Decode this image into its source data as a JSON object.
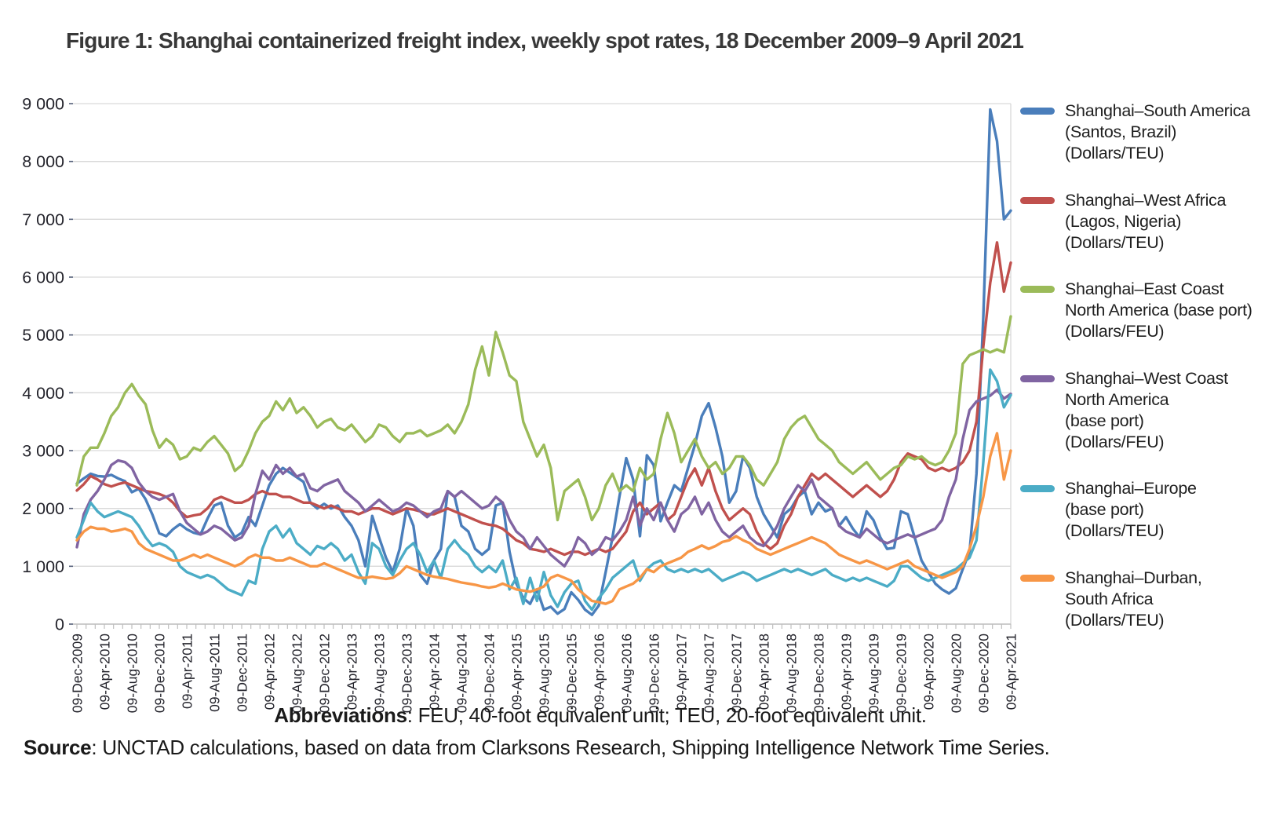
{
  "title": "Figure 1: Shanghai containerized freight index, weekly spot rates, 18 December 2009–9 April 2021",
  "footer": {
    "abbreviations_label": "Abbreviations",
    "abbreviations_text": ": FEU, 40-foot equivalent unit; TEU, 20-foot equivalent unit.",
    "source_label": "Source",
    "source_text": ": UNCTAD calculations, based on data from Clarksons Research, Shipping Intelligence Network Time Series."
  },
  "chart_data": {
    "type": "line",
    "title": "Shanghai containerized freight index, weekly spot rates",
    "sampling": "monthly estimates read from chart, Dec-2009 through Apr-2021 (137 points per series)",
    "grid": "horizontal",
    "legend_position": "right",
    "x_axis": {
      "start": "09-Dec-2009",
      "end": "09-Apr-2021",
      "months_per_tick": 4,
      "tick_labels": [
        "09-Dec-2009",
        "09-Apr-2010",
        "09-Aug-2010",
        "09-Dec-2010",
        "09-Apr-2011",
        "09-Aug-2011",
        "09-Dec-2011",
        "09-Apr-2012",
        "09-Aug-2012",
        "09-Dec-2012",
        "09-Apr-2013",
        "09-Aug-2013",
        "09-Dec-2013",
        "09-Apr-2014",
        "09-Aug-2014",
        "09-Dec-2014",
        "09-Apr-2015",
        "09-Aug-2015",
        "09-Dec-2015",
        "09-Apr-2016",
        "09-Aug-2016",
        "09-Dec-2016",
        "09-Apr-2017",
        "09-Aug-2017",
        "09-Dec-2017",
        "09-Apr-2018",
        "09-Aug-2018",
        "09-Dec-2018",
        "09-Apr-2019",
        "09-Aug-2019",
        "09-Dec-2019",
        "09-Apr-2020",
        "09-Aug-2020",
        "09-Dec-2020",
        "09-Apr-2021"
      ]
    },
    "y_axis": {
      "min": 0,
      "max": 9000,
      "step": 1000,
      "tick_labels": [
        "0",
        "1 000",
        "2 000",
        "3 000",
        "4 000",
        "5 000",
        "6 000",
        "7 000",
        "8 000",
        "9 000"
      ]
    },
    "series": [
      {
        "name": "Shanghai–South America (Santos, Brazil) (Dollars/TEU)",
        "legend_lines": [
          "Shanghai–South America",
          "(Santos, Brazil)",
          "(Dollars/TEU)"
        ],
        "color": "#4a7ebb",
        "values": [
          2430,
          2520,
          2600,
          2560,
          2550,
          2580,
          2520,
          2470,
          2280,
          2340,
          2160,
          1890,
          1570,
          1520,
          1640,
          1730,
          1640,
          1580,
          1550,
          1820,
          2050,
          2100,
          1700,
          1500,
          1580,
          1850,
          1700,
          2050,
          2400,
          2600,
          2700,
          2620,
          2540,
          2460,
          2100,
          2000,
          2080,
          2000,
          2050,
          1850,
          1700,
          1450,
          1000,
          1870,
          1500,
          1150,
          900,
          1300,
          2000,
          1700,
          850,
          700,
          1100,
          1300,
          2300,
          2200,
          1700,
          1600,
          1300,
          1200,
          1300,
          2050,
          2100,
          1250,
          700,
          450,
          350,
          600,
          250,
          300,
          180,
          260,
          550,
          420,
          250,
          160,
          320,
          900,
          1500,
          2200,
          2870,
          2500,
          1520,
          2920,
          2750,
          1780,
          2100,
          2400,
          2300,
          2700,
          3100,
          3600,
          3820,
          3400,
          2900,
          2100,
          2300,
          2900,
          2700,
          2200,
          1900,
          1700,
          1500,
          1900,
          2000,
          2200,
          2300,
          1900,
          2100,
          1950,
          2000,
          1700,
          1850,
          1650,
          1500,
          1950,
          1800,
          1500,
          1300,
          1320,
          1950,
          1900,
          1500,
          1100,
          900,
          700,
          600,
          530,
          620,
          950,
          1250,
          2600,
          5300,
          8900,
          8350,
          7000,
          7150
        ]
      },
      {
        "name": "Shanghai–West Africa (Lagos, Nigeria) (Dollars/TEU)",
        "legend_lines": [
          "Shanghai–West Africa",
          "(Lagos, Nigeria)",
          "(Dollars/TEU)"
        ],
        "color": "#c0504d",
        "values": [
          2310,
          2420,
          2560,
          2500,
          2420,
          2380,
          2420,
          2450,
          2400,
          2350,
          2300,
          2280,
          2250,
          2200,
          2100,
          1950,
          1850,
          1880,
          1900,
          2000,
          2150,
          2200,
          2150,
          2100,
          2100,
          2150,
          2250,
          2300,
          2250,
          2250,
          2200,
          2200,
          2150,
          2100,
          2100,
          2050,
          2000,
          2050,
          2000,
          1950,
          1950,
          1900,
          1950,
          2000,
          2000,
          1950,
          1900,
          1950,
          2000,
          1980,
          1950,
          1900,
          1900,
          1950,
          2000,
          1950,
          1900,
          1850,
          1800,
          1750,
          1720,
          1700,
          1650,
          1550,
          1450,
          1400,
          1300,
          1280,
          1250,
          1300,
          1250,
          1200,
          1250,
          1250,
          1200,
          1250,
          1300,
          1250,
          1300,
          1450,
          1600,
          1950,
          2100,
          1900,
          2000,
          2100,
          1800,
          1900,
          2200,
          2500,
          2690,
          2400,
          2700,
          2300,
          2000,
          1800,
          1900,
          2000,
          1900,
          1600,
          1400,
          1300,
          1400,
          1700,
          1900,
          2200,
          2400,
          2600,
          2500,
          2600,
          2500,
          2400,
          2300,
          2200,
          2300,
          2400,
          2300,
          2200,
          2300,
          2500,
          2800,
          2950,
          2900,
          2850,
          2700,
          2650,
          2700,
          2650,
          2700,
          2800,
          3000,
          3500,
          4800,
          5900,
          6600,
          5750,
          6250
        ]
      },
      {
        "name": "Shanghai–East Coast North America (base port) (Dollars/FEU)",
        "legend_lines": [
          "Shanghai–East Coast",
          "North America (base port)",
          "(Dollars/FEU)"
        ],
        "color": "#9bbb59",
        "values": [
          2400,
          2900,
          3050,
          3050,
          3300,
          3600,
          3750,
          4000,
          4150,
          3950,
          3800,
          3350,
          3050,
          3200,
          3100,
          2850,
          2900,
          3050,
          3000,
          3150,
          3250,
          3100,
          2950,
          2650,
          2750,
          3000,
          3300,
          3500,
          3600,
          3850,
          3700,
          3900,
          3650,
          3750,
          3600,
          3400,
          3500,
          3550,
          3400,
          3350,
          3450,
          3300,
          3150,
          3250,
          3450,
          3400,
          3250,
          3150,
          3300,
          3300,
          3350,
          3250,
          3300,
          3350,
          3450,
          3300,
          3500,
          3800,
          4400,
          4800,
          4300,
          5050,
          4700,
          4300,
          4200,
          3500,
          3200,
          2900,
          3100,
          2700,
          1800,
          2300,
          2400,
          2500,
          2200,
          1800,
          2000,
          2400,
          2600,
          2300,
          2400,
          2300,
          2700,
          2500,
          2600,
          3200,
          3650,
          3300,
          2800,
          3000,
          3200,
          2900,
          2700,
          2800,
          2600,
          2700,
          2900,
          2900,
          2750,
          2500,
          2400,
          2600,
          2800,
          3200,
          3400,
          3530,
          3600,
          3400,
          3200,
          3100,
          3000,
          2800,
          2700,
          2600,
          2700,
          2800,
          2650,
          2500,
          2600,
          2700,
          2750,
          2900,
          2850,
          2900,
          2800,
          2750,
          2800,
          3000,
          3300,
          4500,
          4650,
          4700,
          4750,
          4700,
          4750,
          4700,
          5320
        ]
      },
      {
        "name": "Shanghai–West Coast North America (base port) (Dollars/FEU)",
        "legend_lines": [
          "Shanghai–West Coast",
          "North America",
          "(base port)",
          "(Dollars/FEU)"
        ],
        "color": "#8064a2",
        "values": [
          1330,
          1900,
          2150,
          2300,
          2500,
          2750,
          2830,
          2800,
          2700,
          2450,
          2300,
          2200,
          2150,
          2200,
          2250,
          1950,
          1750,
          1650,
          1550,
          1600,
          1700,
          1650,
          1550,
          1450,
          1500,
          1700,
          2250,
          2650,
          2500,
          2750,
          2600,
          2700,
          2550,
          2600,
          2350,
          2300,
          2400,
          2450,
          2500,
          2300,
          2200,
          2100,
          1950,
          2050,
          2150,
          2050,
          1950,
          2000,
          2100,
          2050,
          1950,
          1850,
          1950,
          2000,
          2300,
          2200,
          2300,
          2200,
          2100,
          2000,
          2050,
          2200,
          2100,
          1800,
          1600,
          1500,
          1300,
          1500,
          1350,
          1200,
          1100,
          1000,
          1200,
          1500,
          1400,
          1200,
          1300,
          1500,
          1450,
          1600,
          1800,
          2200,
          1700,
          2000,
          1800,
          2100,
          1800,
          1600,
          1900,
          2000,
          2200,
          1900,
          2100,
          1800,
          1600,
          1500,
          1600,
          1700,
          1500,
          1400,
          1350,
          1500,
          1700,
          2000,
          2200,
          2400,
          2300,
          2500,
          2200,
          2100,
          2000,
          1700,
          1600,
          1550,
          1500,
          1650,
          1550,
          1450,
          1400,
          1450,
          1500,
          1550,
          1500,
          1550,
          1600,
          1650,
          1800,
          2200,
          2500,
          3200,
          3700,
          3850,
          3900,
          3950,
          4050,
          3900,
          3980
        ]
      },
      {
        "name": "Shanghai–Europe (base port) (Dollars/TEU)",
        "legend_lines": [
          "Shanghai–Europe",
          "(base port)",
          "(Dollars/TEU)"
        ],
        "color": "#4bacc6",
        "values": [
          1500,
          1800,
          2100,
          1950,
          1850,
          1900,
          1950,
          1900,
          1850,
          1700,
          1500,
          1350,
          1400,
          1350,
          1250,
          1000,
          900,
          850,
          800,
          850,
          800,
          700,
          600,
          550,
          500,
          750,
          700,
          1300,
          1600,
          1700,
          1500,
          1650,
          1400,
          1300,
          1200,
          1350,
          1300,
          1400,
          1300,
          1100,
          1200,
          900,
          700,
          1400,
          1300,
          1000,
          850,
          1100,
          1300,
          1400,
          1200,
          900,
          1100,
          800,
          1300,
          1450,
          1300,
          1200,
          1000,
          900,
          1000,
          900,
          1100,
          600,
          800,
          350,
          800,
          400,
          900,
          500,
          300,
          550,
          700,
          750,
          400,
          250,
          450,
          600,
          800,
          900,
          1000,
          1100,
          750,
          950,
          1050,
          1100,
          950,
          900,
          950,
          900,
          950,
          900,
          950,
          850,
          750,
          800,
          850,
          900,
          850,
          750,
          800,
          850,
          900,
          950,
          900,
          950,
          900,
          850,
          900,
          950,
          850,
          800,
          750,
          800,
          750,
          800,
          750,
          700,
          650,
          750,
          1000,
          1000,
          900,
          800,
          750,
          800,
          850,
          900,
          950,
          1050,
          1150,
          1450,
          2800,
          4400,
          4200,
          3750,
          3960
        ]
      },
      {
        "name": "Shanghai–Durban, South Africa (Dollars/TEU)",
        "legend_lines": [
          "Shanghai–Durban,",
          "South Africa",
          "(Dollars/TEU)"
        ],
        "color": "#f79646",
        "values": [
          1450,
          1600,
          1680,
          1650,
          1650,
          1600,
          1620,
          1650,
          1600,
          1400,
          1300,
          1250,
          1200,
          1150,
          1100,
          1100,
          1150,
          1200,
          1150,
          1200,
          1150,
          1100,
          1050,
          1000,
          1050,
          1150,
          1200,
          1150,
          1150,
          1100,
          1100,
          1150,
          1100,
          1050,
          1000,
          1000,
          1050,
          1000,
          950,
          900,
          850,
          800,
          800,
          820,
          800,
          780,
          800,
          880,
          1000,
          950,
          900,
          850,
          820,
          800,
          780,
          750,
          720,
          700,
          680,
          650,
          630,
          650,
          700,
          650,
          600,
          580,
          560,
          600,
          650,
          800,
          850,
          800,
          750,
          600,
          500,
          400,
          380,
          350,
          400,
          600,
          650,
          700,
          800,
          950,
          900,
          1000,
          1050,
          1100,
          1150,
          1250,
          1300,
          1360,
          1300,
          1350,
          1420,
          1450,
          1520,
          1450,
          1400,
          1300,
          1250,
          1200,
          1250,
          1300,
          1350,
          1400,
          1450,
          1500,
          1450,
          1400,
          1300,
          1200,
          1150,
          1100,
          1050,
          1100,
          1050,
          1000,
          950,
          1000,
          1050,
          1100,
          1000,
          950,
          900,
          850,
          800,
          850,
          900,
          1000,
          1300,
          1700,
          2200,
          2900,
          3300,
          2500,
          3000
        ]
      }
    ]
  }
}
